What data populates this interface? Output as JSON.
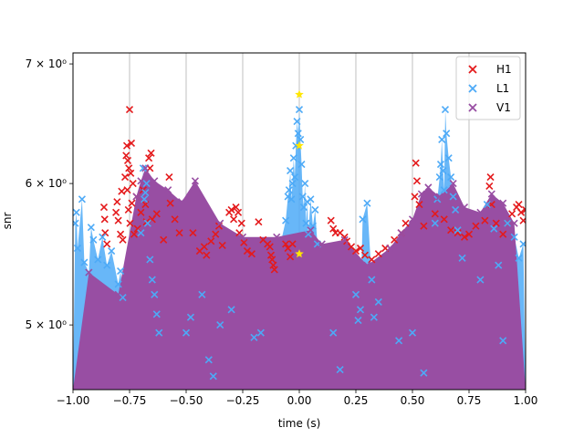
{
  "chart_data": {
    "type": "scatter",
    "title": "",
    "xlabel": "time (s)",
    "ylabel": "snr",
    "xlim": [
      -1.0,
      1.0
    ],
    "ylim": [
      4.6,
      7.1
    ],
    "yscale": "log",
    "grid": "vertical",
    "legend_position": "top-right",
    "x_ticks": [
      -1.0,
      -0.75,
      -0.5,
      -0.25,
      0.0,
      0.25,
      0.5,
      0.75,
      1.0
    ],
    "x_tick_labels": [
      "−1.00",
      "−0.75",
      "−0.50",
      "−0.25",
      "0.00",
      "0.25",
      "0.50",
      "0.75",
      "1.00"
    ],
    "y_ticks": [
      5,
      6,
      7
    ],
    "y_tick_labels": [
      "5 × 10⁰",
      "6 × 10⁰",
      "7 × 10⁰"
    ],
    "series": [
      {
        "name": "H1",
        "color": "#e41a1c",
        "marker": "x",
        "points": [
          [
            -0.863,
            5.82
          ],
          [
            -0.86,
            5.73
          ],
          [
            -0.858,
            5.63
          ],
          [
            -0.85,
            5.55
          ],
          [
            -0.81,
            5.78
          ],
          [
            -0.805,
            5.86
          ],
          [
            -0.8,
            5.72
          ],
          [
            -0.79,
            5.62
          ],
          [
            -0.785,
            5.94
          ],
          [
            -0.78,
            5.58
          ],
          [
            -0.77,
            6.05
          ],
          [
            -0.765,
            6.22
          ],
          [
            -0.762,
            6.3
          ],
          [
            -0.76,
            5.95
          ],
          [
            -0.758,
            6.18
          ],
          [
            -0.755,
            5.8
          ],
          [
            -0.753,
            6.12
          ],
          [
            -0.75,
            6.6
          ],
          [
            -0.748,
            5.7
          ],
          [
            -0.745,
            6.08
          ],
          [
            -0.742,
            6.32
          ],
          [
            -0.74,
            5.85
          ],
          [
            -0.735,
            6.0
          ],
          [
            -0.73,
            5.62
          ],
          [
            -0.72,
            5.9
          ],
          [
            -0.715,
            5.66
          ],
          [
            -0.7,
            5.78
          ],
          [
            -0.69,
            5.95
          ],
          [
            -0.68,
            5.84
          ],
          [
            -0.675,
            5.71
          ],
          [
            -0.665,
            6.2
          ],
          [
            -0.66,
            6.12
          ],
          [
            -0.655,
            6.24
          ],
          [
            -0.65,
            5.73
          ],
          [
            -0.63,
            5.77
          ],
          [
            -0.6,
            5.58
          ],
          [
            -0.575,
            6.05
          ],
          [
            -0.57,
            5.85
          ],
          [
            -0.55,
            5.73
          ],
          [
            -0.53,
            5.63
          ],
          [
            -0.47,
            5.63
          ],
          [
            -0.44,
            5.5
          ],
          [
            -0.42,
            5.53
          ],
          [
            -0.41,
            5.47
          ],
          [
            -0.39,
            5.57
          ],
          [
            -0.37,
            5.62
          ],
          [
            -0.355,
            5.68
          ],
          [
            -0.34,
            5.54
          ],
          [
            -0.31,
            5.78
          ],
          [
            -0.3,
            5.8
          ],
          [
            -0.29,
            5.73
          ],
          [
            -0.28,
            5.82
          ],
          [
            -0.27,
            5.78
          ],
          [
            -0.265,
            5.63
          ],
          [
            -0.255,
            5.7
          ],
          [
            -0.245,
            5.56
          ],
          [
            -0.23,
            5.5
          ],
          [
            -0.21,
            5.48
          ],
          [
            -0.18,
            5.71
          ],
          [
            -0.16,
            5.58
          ],
          [
            -0.14,
            5.55
          ],
          [
            -0.13,
            5.53
          ],
          [
            -0.125,
            5.47
          ],
          [
            -0.12,
            5.44
          ],
          [
            -0.115,
            5.4
          ],
          [
            -0.11,
            5.37
          ],
          [
            -0.06,
            5.55
          ],
          [
            -0.05,
            5.52
          ],
          [
            -0.04,
            5.46
          ],
          [
            -0.03,
            5.55
          ],
          [
            0.14,
            5.72
          ],
          [
            0.15,
            5.66
          ],
          [
            0.16,
            5.63
          ],
          [
            0.18,
            5.63
          ],
          [
            0.2,
            5.6
          ],
          [
            0.21,
            5.57
          ],
          [
            0.23,
            5.53
          ],
          [
            0.25,
            5.5
          ],
          [
            0.27,
            5.52
          ],
          [
            0.29,
            5.47
          ],
          [
            0.32,
            5.44
          ],
          [
            0.35,
            5.48
          ],
          [
            0.38,
            5.52
          ],
          [
            0.42,
            5.58
          ],
          [
            0.45,
            5.63
          ],
          [
            0.47,
            5.7
          ],
          [
            0.51,
            5.9
          ],
          [
            0.515,
            6.16
          ],
          [
            0.52,
            6.02
          ],
          [
            0.53,
            5.84
          ],
          [
            0.55,
            5.68
          ],
          [
            0.6,
            5.77
          ],
          [
            0.64,
            5.73
          ],
          [
            0.67,
            5.65
          ],
          [
            0.7,
            5.63
          ],
          [
            0.73,
            5.6
          ],
          [
            0.75,
            5.62
          ],
          [
            0.78,
            5.68
          ],
          [
            0.82,
            5.72
          ],
          [
            0.84,
            5.98
          ],
          [
            0.845,
            6.05
          ],
          [
            0.85,
            5.84
          ],
          [
            0.87,
            5.7
          ],
          [
            0.9,
            5.62
          ],
          [
            0.92,
            5.7
          ],
          [
            0.94,
            5.77
          ],
          [
            0.96,
            5.82
          ],
          [
            0.97,
            5.84
          ],
          [
            0.98,
            5.78
          ],
          [
            0.99,
            5.72
          ],
          [
            1.0,
            5.8
          ]
        ]
      },
      {
        "name": "L1",
        "color": "#4daaf7",
        "marker": "x",
        "points": [
          [
            -0.99,
            5.7
          ],
          [
            -0.985,
            5.78
          ],
          [
            -0.98,
            5.52
          ],
          [
            -0.96,
            5.88
          ],
          [
            -0.95,
            5.42
          ],
          [
            -0.93,
            5.35
          ],
          [
            -0.92,
            5.67
          ],
          [
            -0.91,
            5.58
          ],
          [
            -0.89,
            5.44
          ],
          [
            -0.87,
            5.6
          ],
          [
            -0.85,
            5.4
          ],
          [
            -0.83,
            5.5
          ],
          [
            -0.8,
            5.27
          ],
          [
            -0.79,
            5.36
          ],
          [
            -0.78,
            5.18
          ],
          [
            -0.7,
            5.63
          ],
          [
            -0.69,
            6.12
          ],
          [
            -0.685,
            5.88
          ],
          [
            -0.68,
            5.93
          ],
          [
            -0.675,
            6.0
          ],
          [
            -0.67,
            5.7
          ],
          [
            -0.66,
            5.44
          ],
          [
            -0.65,
            5.3
          ],
          [
            -0.64,
            5.2
          ],
          [
            -0.63,
            5.07
          ],
          [
            -0.62,
            4.95
          ],
          [
            -0.5,
            4.95
          ],
          [
            -0.48,
            5.05
          ],
          [
            -0.43,
            5.2
          ],
          [
            -0.4,
            4.78
          ],
          [
            -0.38,
            4.68
          ],
          [
            -0.35,
            5.0
          ],
          [
            -0.3,
            5.1
          ],
          [
            -0.2,
            4.92
          ],
          [
            -0.17,
            4.95
          ],
          [
            -0.06,
            5.72
          ],
          [
            -0.05,
            5.9
          ],
          [
            -0.045,
            5.95
          ],
          [
            -0.04,
            6.1
          ],
          [
            -0.035,
            5.88
          ],
          [
            -0.03,
            6.0
          ],
          [
            -0.025,
            6.2
          ],
          [
            -0.02,
            6.05
          ],
          [
            -0.015,
            6.3
          ],
          [
            -0.01,
            6.5
          ],
          [
            -0.005,
            6.4
          ],
          [
            0.0,
            6.6
          ],
          [
            0.005,
            6.35
          ],
          [
            0.01,
            6.15
          ],
          [
            0.015,
            5.9
          ],
          [
            0.02,
            5.82
          ],
          [
            0.025,
            6.0
          ],
          [
            0.03,
            5.7
          ],
          [
            0.035,
            5.86
          ],
          [
            0.04,
            5.62
          ],
          [
            0.05,
            5.88
          ],
          [
            0.06,
            5.68
          ],
          [
            0.07,
            5.8
          ],
          [
            0.08,
            5.55
          ],
          [
            0.15,
            4.95
          ],
          [
            0.18,
            4.72
          ],
          [
            0.25,
            5.2
          ],
          [
            0.26,
            5.03
          ],
          [
            0.27,
            5.1
          ],
          [
            0.28,
            5.73
          ],
          [
            0.3,
            5.85
          ],
          [
            0.32,
            5.3
          ],
          [
            0.33,
            5.05
          ],
          [
            0.35,
            5.15
          ],
          [
            0.44,
            4.9
          ],
          [
            0.5,
            4.95
          ],
          [
            0.55,
            4.7
          ],
          [
            0.6,
            5.7
          ],
          [
            0.61,
            5.88
          ],
          [
            0.62,
            6.05
          ],
          [
            0.625,
            6.15
          ],
          [
            0.63,
            6.35
          ],
          [
            0.635,
            6.1
          ],
          [
            0.64,
            5.95
          ],
          [
            0.645,
            6.6
          ],
          [
            0.65,
            6.4
          ],
          [
            0.66,
            6.2
          ],
          [
            0.67,
            6.05
          ],
          [
            0.68,
            5.9
          ],
          [
            0.69,
            5.8
          ],
          [
            0.7,
            5.65
          ],
          [
            0.72,
            5.45
          ],
          [
            0.8,
            5.3
          ],
          [
            0.83,
            5.84
          ],
          [
            0.86,
            5.66
          ],
          [
            0.88,
            5.4
          ],
          [
            0.9,
            4.9
          ],
          [
            0.92,
            5.7
          ],
          [
            0.95,
            5.6
          ],
          [
            0.97,
            5.45
          ],
          [
            0.99,
            5.55
          ]
        ]
      },
      {
        "name": "V1",
        "color": "#984ea3",
        "marker": "x",
        "points": [
          [
            -0.93,
            5.35
          ],
          [
            -0.8,
            5.2
          ],
          [
            -0.72,
            5.9
          ],
          [
            -0.7,
            6.02
          ],
          [
            -0.68,
            6.12
          ],
          [
            -0.64,
            6.02
          ],
          [
            -0.58,
            5.95
          ],
          [
            -0.52,
            5.86
          ],
          [
            -0.46,
            6.02
          ],
          [
            -0.35,
            5.7
          ],
          [
            -0.25,
            5.6
          ],
          [
            -0.1,
            5.6
          ],
          [
            0.05,
            5.65
          ],
          [
            0.1,
            5.55
          ],
          [
            0.2,
            5.58
          ],
          [
            0.3,
            5.4
          ],
          [
            0.4,
            5.52
          ],
          [
            0.45,
            5.63
          ],
          [
            0.5,
            5.73
          ],
          [
            0.54,
            5.92
          ],
          [
            0.57,
            5.97
          ],
          [
            0.62,
            5.9
          ],
          [
            0.68,
            6.0
          ],
          [
            0.73,
            5.82
          ],
          [
            0.8,
            5.78
          ],
          [
            0.85,
            5.92
          ],
          [
            0.9,
            5.85
          ],
          [
            0.95,
            5.7
          ]
        ]
      }
    ],
    "highlighted_points": {
      "color": "#ffe600",
      "marker": "star",
      "points": [
        [
          0.0,
          6.73
        ],
        [
          0.0,
          6.3
        ],
        [
          0.0,
          5.48
        ]
      ]
    }
  }
}
